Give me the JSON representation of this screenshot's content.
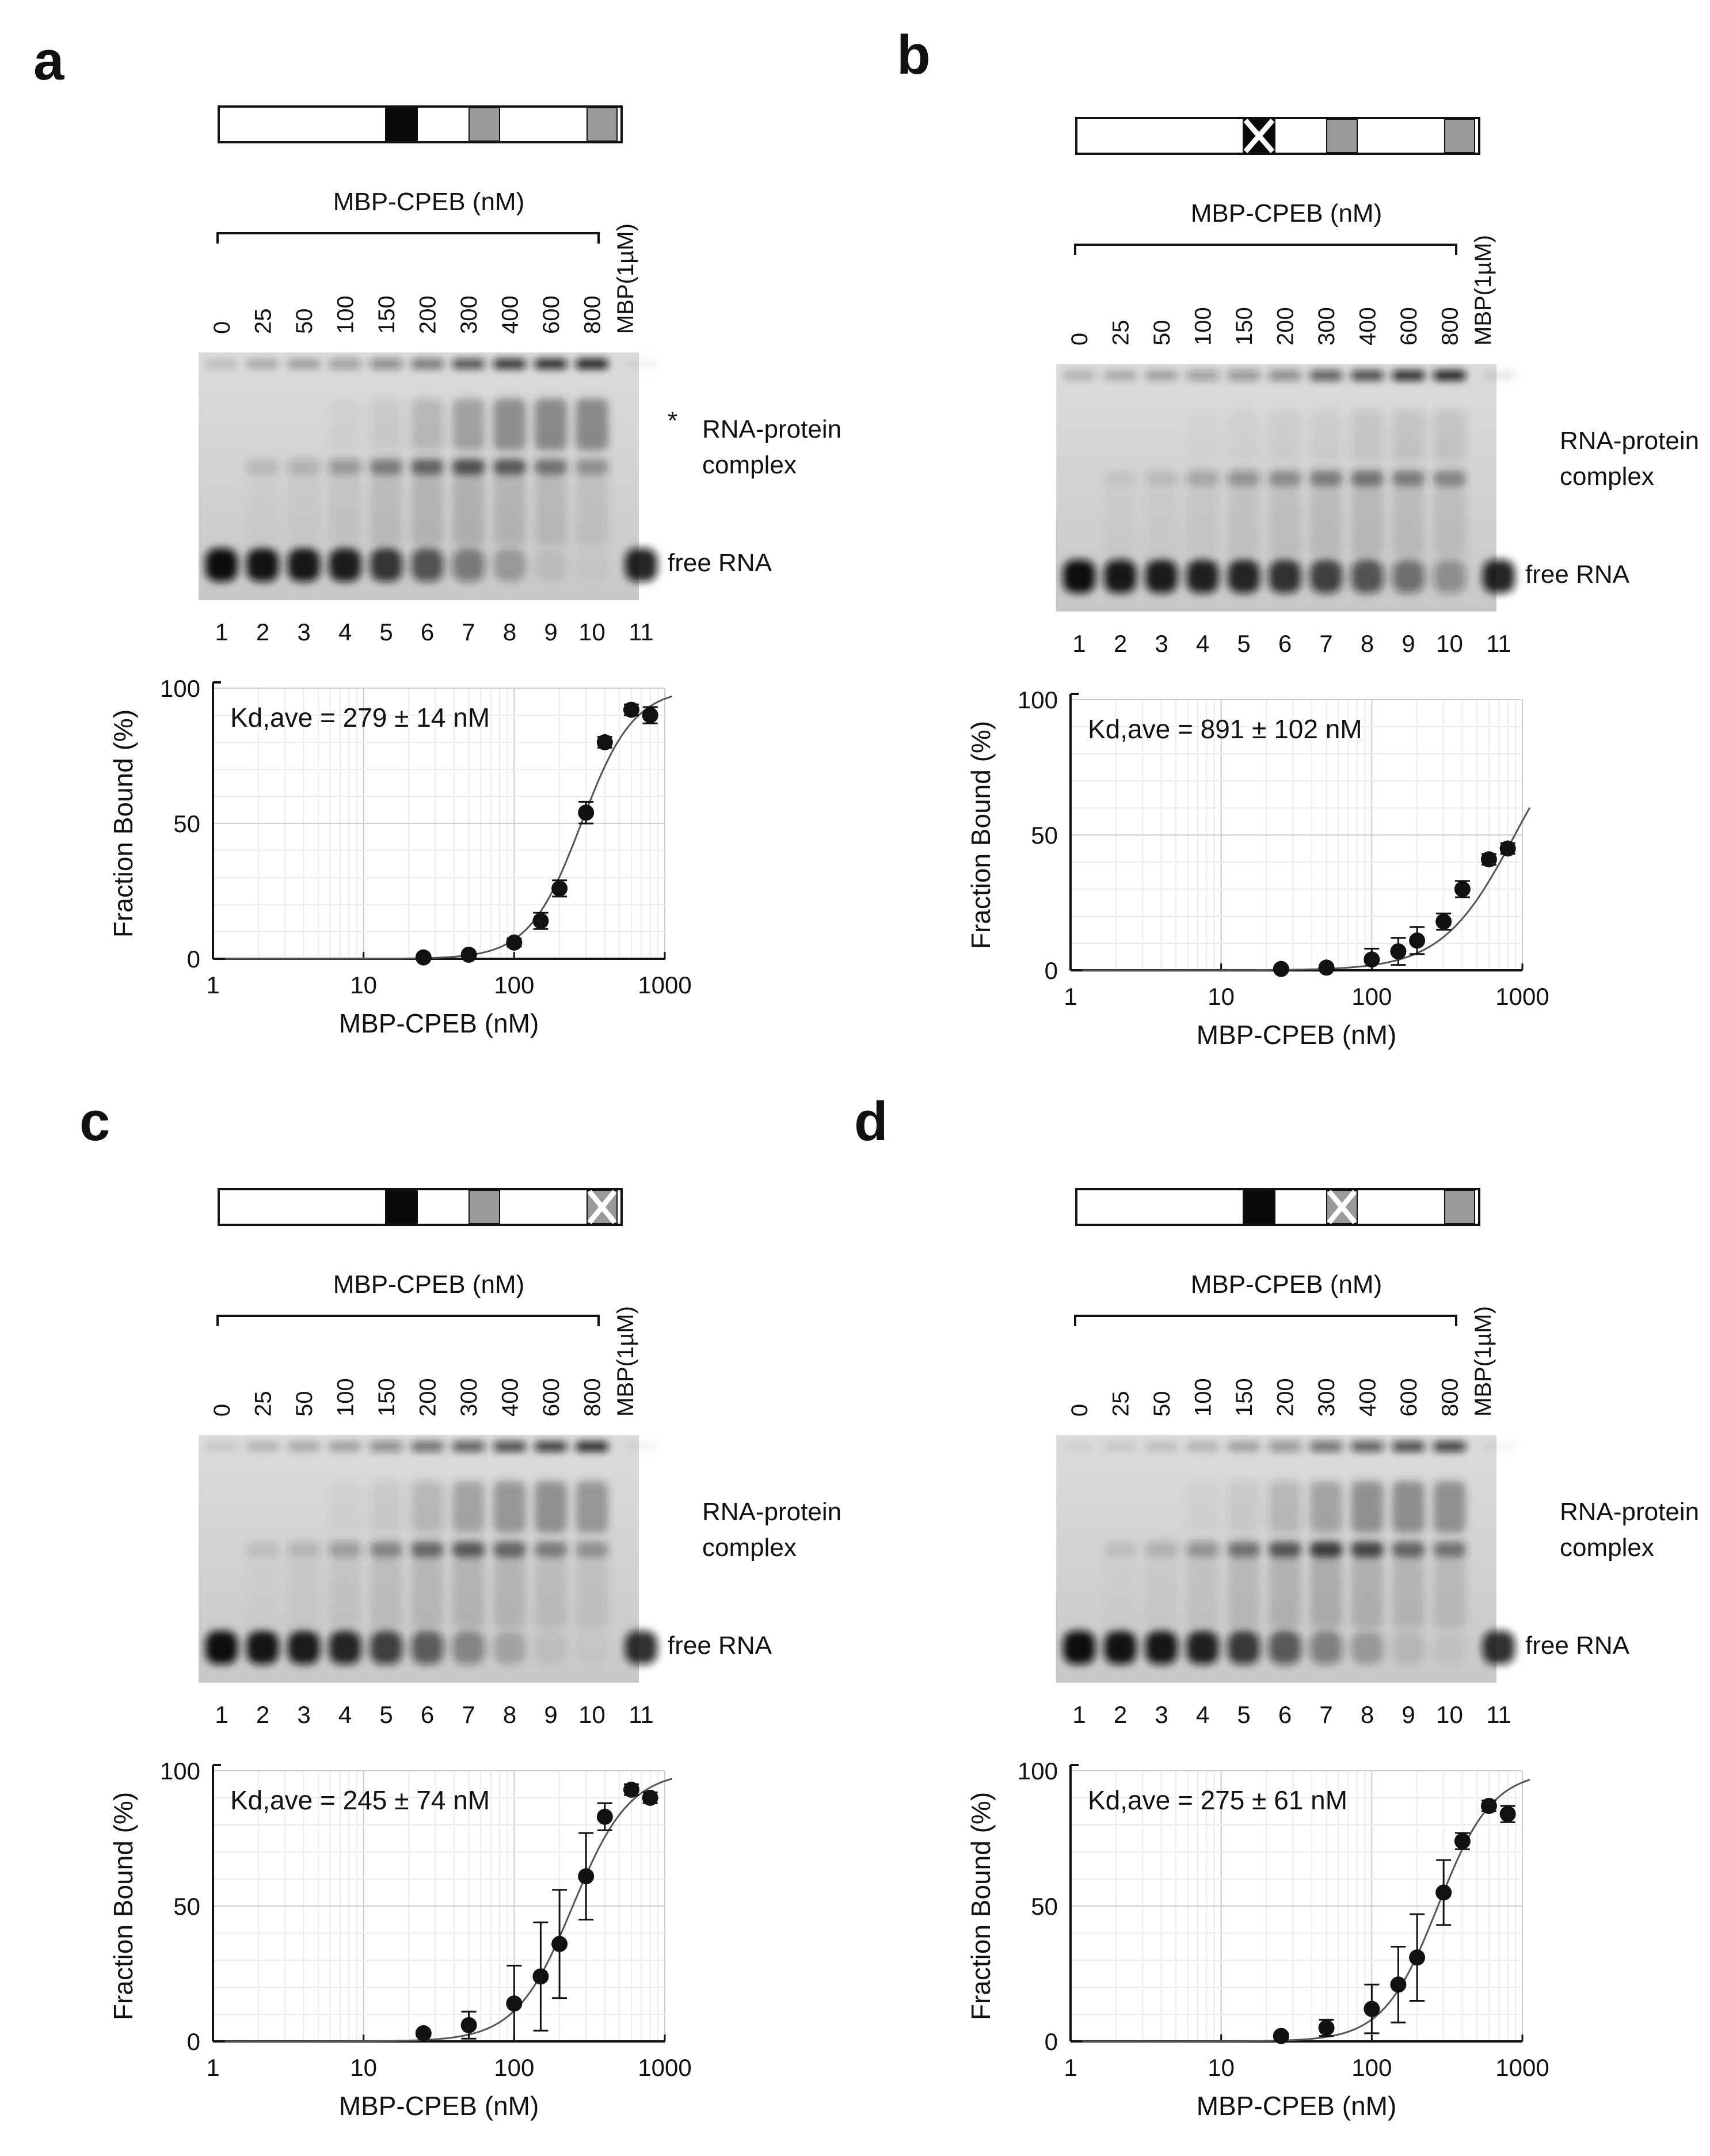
{
  "panels": [
    {
      "id": "a",
      "letter": "a",
      "schematic": {
        "black": "normal",
        "gray2": "normal",
        "gray3": "normal"
      },
      "bracket_label": "MBP-CPEB (nM)",
      "control_label": "MBP(1µM)",
      "concentrations": [
        "0",
        "25",
        "50",
        "100",
        "150",
        "200",
        "300",
        "400",
        "600",
        "800"
      ],
      "lanes": [
        "1",
        "2",
        "3",
        "4",
        "5",
        "6",
        "7",
        "8",
        "9",
        "10",
        "11"
      ],
      "band_labels": {
        "star": "*",
        "complex_line1": "RNA-protein",
        "complex_line2": "complex",
        "free": "free RNA"
      },
      "gel_intensity": {
        "free": [
          1,
          0.97,
          0.95,
          0.92,
          0.8,
          0.65,
          0.45,
          0.25,
          0.08,
          0.03,
          0.9
        ],
        "complex": [
          0,
          0.12,
          0.2,
          0.32,
          0.5,
          0.65,
          0.75,
          0.7,
          0.55,
          0.4,
          0
        ],
        "upper": [
          0,
          0,
          0,
          0.05,
          0.15,
          0.3,
          0.55,
          0.75,
          0.8,
          0.8,
          0
        ],
        "well": [
          0.15,
          0.25,
          0.3,
          0.35,
          0.45,
          0.55,
          0.75,
          0.9,
          0.95,
          1,
          0.05
        ]
      },
      "kd_text": "Kd,ave = 279  ± 14 nM",
      "chart_data": {
        "type": "scatter",
        "title": "",
        "xlabel": "MBP-CPEB (nM)",
        "ylabel": "Fraction Bound (%)",
        "xscale": "log",
        "xlim": [
          1,
          1000
        ],
        "ylim": [
          0,
          100
        ],
        "xticks": [
          "1",
          "10",
          "100",
          "1000"
        ],
        "yticks": [
          "0",
          "50",
          "100"
        ],
        "kd": 279,
        "hill": 2.5,
        "fit_max": 100,
        "x": [
          25,
          50,
          100,
          150,
          200,
          300,
          400,
          600,
          800
        ],
        "y": [
          0.5,
          1.5,
          6,
          14,
          26,
          54,
          80,
          92,
          90
        ],
        "err": [
          0.5,
          0.5,
          1.5,
          3,
          3,
          4,
          2,
          2,
          3
        ]
      }
    },
    {
      "id": "b",
      "letter": "b",
      "schematic": {
        "black": "crossed",
        "gray2": "normal",
        "gray3": "normal"
      },
      "bracket_label": "MBP-CPEB (nM)",
      "control_label": "MBP(1µM)",
      "concentrations": [
        "0",
        "25",
        "50",
        "100",
        "150",
        "200",
        "300",
        "400",
        "600",
        "800"
      ],
      "lanes": [
        "1",
        "2",
        "3",
        "4",
        "5",
        "6",
        "7",
        "8",
        "9",
        "10",
        "11"
      ],
      "band_labels": {
        "star": "",
        "complex_line1": "RNA-protein",
        "complex_line2": "complex",
        "free": "free RNA"
      },
      "gel_intensity": {
        "free": [
          1,
          0.95,
          0.93,
          0.9,
          0.88,
          0.82,
          0.75,
          0.65,
          0.5,
          0.35,
          0.9
        ],
        "complex": [
          0,
          0.08,
          0.15,
          0.25,
          0.35,
          0.42,
          0.5,
          0.55,
          0.5,
          0.45,
          0
        ],
        "upper": [
          0,
          0,
          0,
          0.03,
          0.05,
          0.08,
          0.12,
          0.18,
          0.2,
          0.2,
          0
        ],
        "well": [
          0.2,
          0.25,
          0.3,
          0.35,
          0.4,
          0.45,
          0.7,
          0.8,
          0.95,
          1,
          0.1
        ]
      },
      "kd_text": "Kd,ave = 891  ± 102 nM",
      "chart_data": {
        "type": "scatter",
        "title": "",
        "xlabel": "MBP-CPEB (nM)",
        "ylabel": "Fraction Bound (%)",
        "xscale": "log",
        "xlim": [
          1,
          1000
        ],
        "ylim": [
          0,
          100
        ],
        "xticks": [
          "1",
          "10",
          "100",
          "1000"
        ],
        "yticks": [
          "0",
          "50",
          "100"
        ],
        "kd": 891,
        "hill": 1.8,
        "fit_max": 100,
        "x": [
          25,
          50,
          100,
          150,
          200,
          300,
          400,
          600,
          800
        ],
        "y": [
          0.5,
          1,
          4,
          7,
          11,
          18,
          30,
          41,
          45
        ],
        "err": [
          0.5,
          0.5,
          4,
          5,
          5,
          3,
          3,
          2,
          2
        ]
      }
    },
    {
      "id": "c",
      "letter": "c",
      "schematic": {
        "black": "normal",
        "gray2": "normal",
        "gray3": "crossed"
      },
      "bracket_label": "MBP-CPEB (nM)",
      "control_label": "MBP(1µM)",
      "concentrations": [
        "0",
        "25",
        "50",
        "100",
        "150",
        "200",
        "300",
        "400",
        "600",
        "800"
      ],
      "lanes": [
        "1",
        "2",
        "3",
        "4",
        "5",
        "6",
        "7",
        "8",
        "9",
        "10",
        "11"
      ],
      "band_labels": {
        "star": "",
        "complex_line1": "RNA-protein",
        "complex_line2": "complex",
        "free": "free RNA"
      },
      "gel_intensity": {
        "free": [
          1,
          0.96,
          0.93,
          0.88,
          0.75,
          0.6,
          0.4,
          0.2,
          0.07,
          0.03,
          0.85
        ],
        "complex": [
          0,
          0.1,
          0.18,
          0.3,
          0.45,
          0.6,
          0.7,
          0.65,
          0.5,
          0.4,
          0
        ],
        "upper": [
          0,
          0,
          0,
          0.05,
          0.15,
          0.3,
          0.5,
          0.65,
          0.7,
          0.65,
          0
        ],
        "well": [
          0.1,
          0.2,
          0.25,
          0.3,
          0.45,
          0.6,
          0.7,
          0.8,
          0.85,
          0.95,
          0.05
        ]
      },
      "kd_text": "Kd,ave = 245  ± 74 nM",
      "chart_data": {
        "type": "scatter",
        "title": "",
        "xlabel": "MBP-CPEB (nM)",
        "ylabel": "Fraction Bound (%)",
        "xscale": "log",
        "xlim": [
          1,
          1000
        ],
        "ylim": [
          0,
          100
        ],
        "xticks": [
          "1",
          "10",
          "100",
          "1000"
        ],
        "yticks": [
          "0",
          "50",
          "100"
        ],
        "kd": 245,
        "hill": 2.3,
        "fit_max": 100,
        "x": [
          25,
          50,
          100,
          150,
          200,
          300,
          400,
          600,
          800
        ],
        "y": [
          3,
          6,
          14,
          24,
          36,
          61,
          83,
          93,
          90
        ],
        "err": [
          1,
          5,
          14,
          20,
          20,
          16,
          5,
          2,
          2
        ]
      }
    },
    {
      "id": "d",
      "letter": "d",
      "schematic": {
        "black": "normal",
        "gray2": "crossed",
        "gray3": "normal"
      },
      "bracket_label": "MBP-CPEB (nM)",
      "control_label": "MBP(1µM)",
      "concentrations": [
        "0",
        "25",
        "50",
        "100",
        "150",
        "200",
        "300",
        "400",
        "600",
        "800"
      ],
      "lanes": [
        "1",
        "2",
        "3",
        "4",
        "5",
        "6",
        "7",
        "8",
        "9",
        "10",
        "11"
      ],
      "band_labels": {
        "star": "",
        "complex_line1": "RNA-protein",
        "complex_line2": "complex",
        "free": "free RNA"
      },
      "gel_intensity": {
        "free": [
          1,
          0.97,
          0.95,
          0.9,
          0.78,
          0.62,
          0.42,
          0.25,
          0.1,
          0.05,
          0.85
        ],
        "complex": [
          0,
          0.1,
          0.2,
          0.35,
          0.55,
          0.72,
          0.85,
          0.8,
          0.65,
          0.55,
          0
        ],
        "upper": [
          0,
          0,
          0,
          0.05,
          0.15,
          0.3,
          0.5,
          0.7,
          0.75,
          0.7,
          0
        ],
        "well": [
          0.05,
          0.1,
          0.15,
          0.2,
          0.3,
          0.4,
          0.6,
          0.7,
          0.8,
          0.85,
          0.05
        ]
      },
      "kd_text": "Kd,ave = 275  ± 61 nM",
      "chart_data": {
        "type": "scatter",
        "title": "",
        "xlabel": "MBP-CPEB (nM)",
        "ylabel": "Fraction Bound (%)",
        "xscale": "log",
        "xlim": [
          1,
          1000
        ],
        "ylim": [
          0,
          100
        ],
        "xticks": [
          "1",
          "10",
          "100",
          "1000"
        ],
        "yticks": [
          "0",
          "50",
          "100"
        ],
        "kd": 275,
        "hill": 2.4,
        "fit_max": 100,
        "x": [
          25,
          50,
          100,
          150,
          200,
          300,
          400,
          600,
          800
        ],
        "y": [
          2,
          5,
          12,
          21,
          31,
          55,
          74,
          87,
          84
        ],
        "err": [
          1,
          3,
          9,
          14,
          16,
          12,
          3,
          2,
          3
        ]
      }
    }
  ]
}
